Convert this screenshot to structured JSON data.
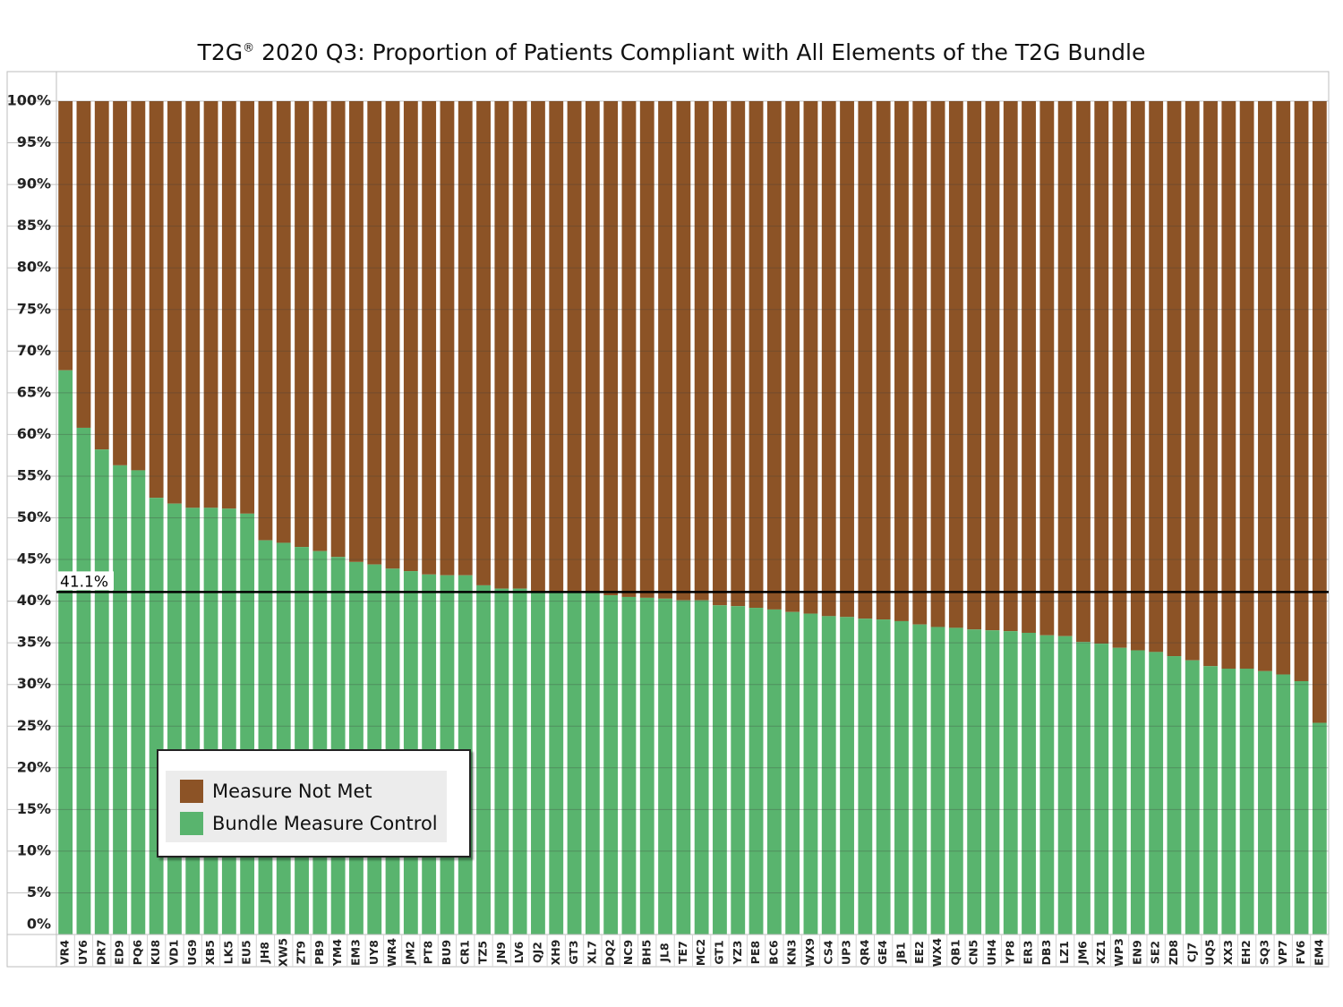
{
  "chart_data": {
    "type": "bar",
    "stacked": true,
    "title_main": "T2G",
    "title_mark": "®",
    "title_rest": " 2020 Q3: Proportion of Patients Compliant with All Elements of the T2G Bundle",
    "ylim": [
      0,
      100
    ],
    "yticks": [
      "0%",
      "5%",
      "10%",
      "15%",
      "20%",
      "25%",
      "30%",
      "35%",
      "40%",
      "45%",
      "50%",
      "55%",
      "60%",
      "65%",
      "70%",
      "75%",
      "80%",
      "85%",
      "90%",
      "95%",
      "100%"
    ],
    "categories": [
      "VR4",
      "UY6",
      "DR7",
      "ED9",
      "PQ6",
      "KU8",
      "VD1",
      "UG9",
      "XB5",
      "LK5",
      "EU5",
      "JH8",
      "XW5",
      "ZT9",
      "PB9",
      "YM4",
      "EM3",
      "UY8",
      "WR4",
      "JM2",
      "PT8",
      "BU9",
      "CR1",
      "TZ5",
      "JN9",
      "LV6",
      "QJ2",
      "XH9",
      "GT3",
      "XL7",
      "DQ2",
      "NC9",
      "BH5",
      "JL8",
      "TE7",
      "MC2",
      "GT1",
      "YZ3",
      "PE8",
      "BC6",
      "KN3",
      "WX9",
      "CS4",
      "UP3",
      "QR4",
      "GE4",
      "JB1",
      "EE2",
      "WX4",
      "QB1",
      "CN5",
      "UH4",
      "YP8",
      "ER3",
      "DB3",
      "LZ1",
      "JM6",
      "XZ1",
      "WP3",
      "EN9",
      "SE2",
      "ZD8",
      "CJ7",
      "UQ5",
      "XX3",
      "EH2",
      "SQ3",
      "VP7",
      "FV6",
      "EM4"
    ],
    "series": [
      {
        "name": "Bundle Measure Control",
        "color": "#59b46e",
        "values": [
          67.7,
          60.8,
          58.2,
          56.3,
          55.7,
          52.4,
          51.7,
          51.2,
          51.2,
          51.1,
          50.5,
          47.3,
          47.0,
          46.5,
          46.0,
          45.3,
          44.7,
          44.4,
          43.9,
          43.6,
          43.2,
          43.1,
          43.1,
          41.9,
          41.5,
          41.5,
          41.1,
          41.1,
          41.0,
          41.0,
          40.7,
          40.5,
          40.4,
          40.3,
          40.1,
          40.1,
          39.5,
          39.4,
          39.2,
          39.0,
          38.7,
          38.5,
          38.2,
          38.1,
          37.9,
          37.8,
          37.6,
          37.2,
          36.9,
          36.8,
          36.6,
          36.5,
          36.4,
          36.2,
          35.9,
          35.8,
          35.1,
          34.9,
          34.4,
          34.1,
          33.9,
          33.4,
          32.9,
          32.2,
          31.9,
          31.9,
          31.6,
          31.2,
          30.4,
          25.4
        ]
      },
      {
        "name": "Measure Not Met",
        "color": "#8c5326"
      }
    ],
    "reference_line": {
      "value": 41.1,
      "label": "41.1%"
    },
    "legend": {
      "position": "bottom-left",
      "items": [
        {
          "label": "Measure Not Met",
          "color": "#8c5326"
        },
        {
          "label": "Bundle Measure Control",
          "color": "#59b46e"
        }
      ]
    }
  }
}
